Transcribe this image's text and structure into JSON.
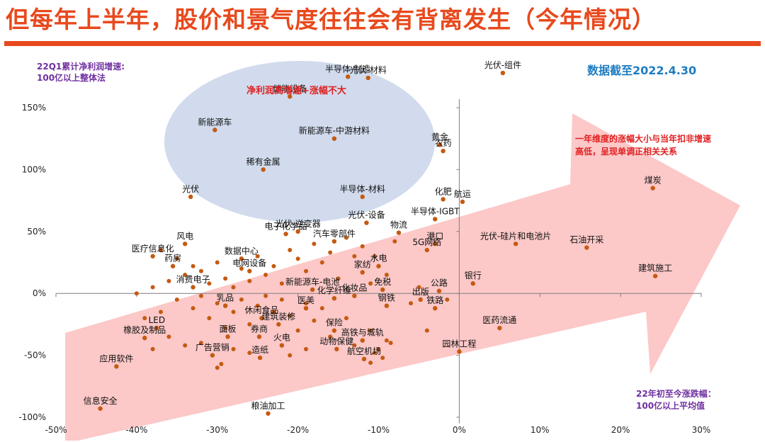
{
  "title": "但每年上半年，股价和景气度往往会有背离发生（今年情况）",
  "notes": {
    "ylabel_line1": "22Q1累计净利润增速:",
    "ylabel_line2": "100亿以上整体法",
    "date": "数据截至2022.4.30",
    "correlation_line1": "一年维度的涨幅大小与当年扣非增速",
    "correlation_line2": "高低，呈现单调正相关关系",
    "xlabel_line1": "22年初至今涨跌幅：",
    "xlabel_line2": "100亿以上平均值",
    "bubble": "净利润高增速+涨幅不大"
  },
  "colors": {
    "title": "#e8491d",
    "point": "#c55a11",
    "bubble_fill": "#cdd8ec",
    "arrow_fill": "#fcc8c8",
    "axis": "#7f7f7f",
    "purple_note": "#7030a0",
    "blue_note": "#1f7cc0",
    "red_note": "#e02020"
  },
  "chart_data": {
    "type": "scatter",
    "xlim": [
      -0.5,
      0.3
    ],
    "ylim": [
      -1.0,
      1.6
    ],
    "x_ticks": [
      {
        "v": -0.5,
        "label": "-50%"
      },
      {
        "v": -0.4,
        "label": "-40%"
      },
      {
        "v": -0.3,
        "label": "-30%"
      },
      {
        "v": -0.2,
        "label": "-20%"
      },
      {
        "v": -0.1,
        "label": "-10%"
      },
      {
        "v": 0.0,
        "label": "0%"
      },
      {
        "v": 0.1,
        "label": "10%"
      },
      {
        "v": 0.2,
        "label": "20%"
      },
      {
        "v": 0.3,
        "label": "30%"
      }
    ],
    "y_ticks": [
      {
        "v": 1.5,
        "label": "150%"
      },
      {
        "v": 1.0,
        "label": "100%"
      },
      {
        "v": 0.5,
        "label": "50%"
      },
      {
        "v": 0.0,
        "label": "0%"
      },
      {
        "v": -0.5,
        "label": "-50%"
      },
      {
        "v": -1.0,
        "label": "-100%"
      }
    ],
    "grid": false,
    "labeled_points": [
      {
        "x": 0.054,
        "y": 1.78,
        "label": "光伏-组件"
      },
      {
        "x": -0.138,
        "y": 1.75,
        "label": "半导体-制造"
      },
      {
        "x": -0.113,
        "y": 1.74,
        "label": "光伏-材料"
      },
      {
        "x": -0.21,
        "y": 1.59,
        "label": "储能设备"
      },
      {
        "x": -0.303,
        "y": 1.32,
        "label": "新能源车"
      },
      {
        "x": -0.155,
        "y": 1.25,
        "label": "新能源车-中游材料"
      },
      {
        "x": -0.024,
        "y": 1.2,
        "label": "黄金"
      },
      {
        "x": -0.02,
        "y": 1.15,
        "label": "农药"
      },
      {
        "x": -0.243,
        "y": 1.0,
        "label": "稀有金属"
      },
      {
        "x": -0.333,
        "y": 0.78,
        "label": "光伏"
      },
      {
        "x": 0.24,
        "y": 0.85,
        "label": "煤炭"
      },
      {
        "x": -0.12,
        "y": 0.78,
        "label": "半导体-材料"
      },
      {
        "x": -0.02,
        "y": 0.76,
        "label": "化肥"
      },
      {
        "x": 0.004,
        "y": 0.74,
        "label": "航运"
      },
      {
        "x": -0.03,
        "y": 0.6,
        "label": "半导体-IGBT"
      },
      {
        "x": -0.115,
        "y": 0.57,
        "label": "光伏-设备"
      },
      {
        "x": -0.215,
        "y": 0.48,
        "label": "电子化学品"
      },
      {
        "x": -0.075,
        "y": 0.49,
        "label": "物流"
      },
      {
        "x": 0.07,
        "y": 0.4,
        "label": "光伏-硅片和电池片"
      },
      {
        "x": 0.158,
        "y": 0.37,
        "label": "石油开采"
      },
      {
        "x": -0.34,
        "y": 0.4,
        "label": "风电"
      },
      {
        "x": -0.03,
        "y": 0.4,
        "label": "港口"
      },
      {
        "x": -0.04,
        "y": 0.35,
        "label": "5G网络"
      },
      {
        "x": -0.1,
        "y": 0.22,
        "label": "水电"
      },
      {
        "x": 0.017,
        "y": 0.08,
        "label": "银行"
      },
      {
        "x": 0.243,
        "y": 0.14,
        "label": "建筑施工"
      },
      {
        "x": -0.025,
        "y": 0.02,
        "label": "公路"
      },
      {
        "x": -0.048,
        "y": -0.05,
        "label": "出版"
      },
      {
        "x": -0.03,
        "y": -0.12,
        "label": "铁路"
      },
      {
        "x": -0.09,
        "y": -0.1,
        "label": "钢铁"
      },
      {
        "x": 0.05,
        "y": -0.28,
        "label": "医药流通"
      },
      {
        "x": 0.0,
        "y": -0.47,
        "label": "园林工程"
      },
      {
        "x": -0.12,
        "y": -0.38,
        "label": "高铁与城轨"
      },
      {
        "x": -0.152,
        "y": -0.45,
        "label": "动物保健"
      },
      {
        "x": -0.155,
        "y": -0.3,
        "label": "保险"
      },
      {
        "x": -0.19,
        "y": -0.12,
        "label": "医美"
      },
      {
        "x": -0.224,
        "y": -0.25,
        "label": "建筑装修"
      },
      {
        "x": -0.248,
        "y": -0.35,
        "label": "券商"
      },
      {
        "x": -0.22,
        "y": -0.42,
        "label": "火电"
      },
      {
        "x": -0.247,
        "y": -0.52,
        "label": "造纸"
      },
      {
        "x": -0.118,
        "y": -0.53,
        "label": "航空机场"
      },
      {
        "x": -0.237,
        "y": -0.97,
        "label": "粮油加工"
      },
      {
        "x": -0.445,
        "y": -0.93,
        "label": "信息安全"
      },
      {
        "x": -0.425,
        "y": -0.59,
        "label": "应用软件"
      },
      {
        "x": -0.39,
        "y": -0.36,
        "label": "橡胶及制品"
      },
      {
        "x": -0.375,
        "y": -0.28,
        "label": "LED"
      },
      {
        "x": -0.306,
        "y": -0.5,
        "label": "广告营销"
      },
      {
        "x": -0.287,
        "y": -0.35,
        "label": "面板"
      },
      {
        "x": -0.245,
        "y": -0.2,
        "label": "休闲食品"
      },
      {
        "x": -0.29,
        "y": -0.1,
        "label": "乳品"
      },
      {
        "x": -0.355,
        "y": 0.22,
        "label": "药房"
      },
      {
        "x": -0.38,
        "y": 0.3,
        "label": "医疗信息化"
      },
      {
        "x": -0.33,
        "y": 0.05,
        "label": "消费电子"
      },
      {
        "x": -0.182,
        "y": 0.03,
        "label": "新能源车-电池"
      },
      {
        "x": -0.13,
        "y": -0.02,
        "label": "化妆品"
      },
      {
        "x": -0.155,
        "y": -0.04,
        "label": "化学纤维"
      },
      {
        "x": -0.12,
        "y": 0.17,
        "label": "家纺"
      },
      {
        "x": -0.095,
        "y": 0.03,
        "label": "免税"
      },
      {
        "x": -0.2,
        "y": 0.5,
        "label": "光伏-逆变器"
      },
      {
        "x": -0.155,
        "y": 0.42,
        "label": "汽车零部件"
      },
      {
        "x": -0.26,
        "y": 0.18,
        "label": "电网设备"
      },
      {
        "x": -0.27,
        "y": 0.28,
        "label": "数据中心"
      }
    ],
    "unlabeled_points": [
      {
        "x": -0.36,
        "y": 0.1
      },
      {
        "x": -0.34,
        "y": 0.15
      },
      {
        "x": -0.33,
        "y": 0.22
      },
      {
        "x": -0.32,
        "y": 0.18
      },
      {
        "x": -0.31,
        "y": 0.08
      },
      {
        "x": -0.3,
        "y": 0.25
      },
      {
        "x": -0.29,
        "y": 0.12
      },
      {
        "x": -0.28,
        "y": 0.05
      },
      {
        "x": -0.27,
        "y": 0.2
      },
      {
        "x": -0.26,
        "y": 0.1
      },
      {
        "x": -0.25,
        "y": 0.3
      },
      {
        "x": -0.24,
        "y": 0.15
      },
      {
        "x": -0.23,
        "y": 0.22
      },
      {
        "x": -0.22,
        "y": 0.08
      },
      {
        "x": -0.21,
        "y": 0.35
      },
      {
        "x": -0.2,
        "y": 0.28
      },
      {
        "x": -0.19,
        "y": 0.18
      },
      {
        "x": -0.18,
        "y": 0.4
      },
      {
        "x": -0.17,
        "y": 0.25
      },
      {
        "x": -0.16,
        "y": 0.33
      },
      {
        "x": -0.15,
        "y": 0.12
      },
      {
        "x": -0.14,
        "y": 0.45
      },
      {
        "x": -0.13,
        "y": 0.3
      },
      {
        "x": -0.12,
        "y": 0.38
      },
      {
        "x": -0.11,
        "y": 0.08
      },
      {
        "x": -0.105,
        "y": 0.3
      },
      {
        "x": -0.09,
        "y": 0.15
      },
      {
        "x": -0.08,
        "y": 0.42
      },
      {
        "x": -0.35,
        "y": -0.05
      },
      {
        "x": -0.33,
        "y": -0.12
      },
      {
        "x": -0.32,
        "y": -0.02
      },
      {
        "x": -0.31,
        "y": -0.2
      },
      {
        "x": -0.3,
        "y": -0.08
      },
      {
        "x": -0.29,
        "y": -0.28
      },
      {
        "x": -0.28,
        "y": -0.15
      },
      {
        "x": -0.27,
        "y": -0.05
      },
      {
        "x": -0.26,
        "y": -0.25
      },
      {
        "x": -0.25,
        "y": -0.1
      },
      {
        "x": -0.24,
        "y": -0.02
      },
      {
        "x": -0.23,
        "y": -0.15
      },
      {
        "x": -0.22,
        "y": -0.05
      },
      {
        "x": -0.21,
        "y": -0.18
      },
      {
        "x": -0.2,
        "y": -0.3
      },
      {
        "x": -0.19,
        "y": -0.08
      },
      {
        "x": -0.18,
        "y": -0.22
      },
      {
        "x": -0.17,
        "y": -0.12
      },
      {
        "x": -0.16,
        "y": -0.35
      },
      {
        "x": -0.14,
        "y": -0.2
      },
      {
        "x": -0.13,
        "y": -0.42
      },
      {
        "x": -0.11,
        "y": -0.3
      },
      {
        "x": -0.1,
        "y": -0.45
      },
      {
        "x": -0.09,
        "y": -0.38
      },
      {
        "x": -0.06,
        "y": -0.08
      },
      {
        "x": -0.05,
        "y": 0.05
      },
      {
        "x": -0.04,
        "y": -0.3
      },
      {
        "x": -0.015,
        "y": -0.05
      },
      {
        "x": -0.39,
        "y": -0.2
      },
      {
        "x": -0.38,
        "y": -0.45
      },
      {
        "x": -0.37,
        "y": -0.15
      },
      {
        "x": -0.36,
        "y": -0.35
      },
      {
        "x": -0.34,
        "y": -0.42
      },
      {
        "x": -0.32,
        "y": -0.4
      },
      {
        "x": -0.3,
        "y": -0.6
      },
      {
        "x": -0.295,
        "y": -0.57
      },
      {
        "x": -0.28,
        "y": -0.45
      },
      {
        "x": -0.26,
        "y": -0.48
      },
      {
        "x": -0.21,
        "y": -0.5
      },
      {
        "x": -0.19,
        "y": -0.45
      },
      {
        "x": -0.11,
        "y": -0.56
      },
      {
        "x": -0.105,
        "y": -0.48
      },
      {
        "x": -0.095,
        "y": -0.52
      },
      {
        "x": -0.085,
        "y": -0.4
      },
      {
        "x": -0.4,
        "y": 0.0
      },
      {
        "x": -0.38,
        "y": 0.05
      },
      {
        "x": -0.37,
        "y": 0.35
      },
      {
        "x": -0.35,
        "y": 0.28
      }
    ]
  }
}
